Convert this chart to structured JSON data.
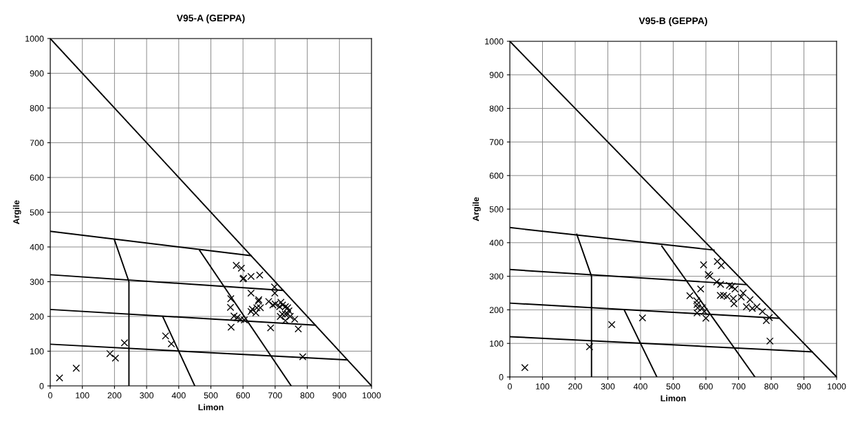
{
  "chart_data": [
    {
      "type": "scatter",
      "title": "V95-A (GEPPA)",
      "xlabel": "Limon",
      "ylabel": "Argile",
      "xlim": [
        0,
        1000
      ],
      "ylim": [
        0,
        1000
      ],
      "xticks": [
        0,
        100,
        200,
        300,
        400,
        500,
        600,
        700,
        800,
        900,
        1000
      ],
      "yticks": [
        0,
        100,
        200,
        300,
        400,
        500,
        600,
        700,
        800,
        900,
        1000
      ],
      "grid": true,
      "legend": false,
      "marker": "cross",
      "series": [
        {
          "color": "#000000",
          "x": [
            579,
            595,
            600,
            602,
            625,
            652,
            698,
            699,
            625,
            649,
            648,
            562,
            561,
            572,
            582,
            593,
            604,
            563,
            629,
            640,
            643,
            654,
            625,
            680,
            693,
            700,
            718,
            723,
            732,
            739,
            714,
            722,
            732,
            739,
            743,
            716,
            732,
            747,
            761,
            686,
            772,
            786,
            29,
            81,
            186,
            203,
            231,
            359,
            377
          ],
          "values": [
            347,
            339,
            308,
            310,
            315,
            319,
            285,
            267,
            267,
            248,
            244,
            251,
            226,
            201,
            197,
            192,
            190,
            169,
            221,
            210,
            225,
            225,
            214,
            243,
            233,
            236,
            241,
            233,
            228,
            225,
            228,
            207,
            207,
            207,
            216,
            200,
            188,
            200,
            192,
            167,
            164,
            84,
            23,
            51,
            93,
            80,
            124,
            144,
            121
          ]
        },
        {
          "type": "line",
          "color": "#000000",
          "marker": "none",
          "x": [
            0,
            1000
          ],
          "values": [
            1000,
            0
          ]
        },
        {
          "type": "line",
          "color": "#000000",
          "marker": "none",
          "x": [
            0,
            625
          ],
          "values": [
            445,
            375
          ]
        },
        {
          "type": "line",
          "color": "#000000",
          "marker": "none",
          "x": [
            0,
            725
          ],
          "values": [
            320,
            275
          ]
        },
        {
          "type": "line",
          "color": "#000000",
          "marker": "none",
          "x": [
            0,
            825
          ],
          "values": [
            220,
            175
          ]
        },
        {
          "type": "line",
          "color": "#000000",
          "marker": "none",
          "x": [
            0,
            925
          ],
          "values": [
            120,
            75
          ]
        },
        {
          "type": "line",
          "color": "#000000",
          "marker": "none",
          "x": [
            200,
            245,
            245
          ],
          "values": [
            420,
            300,
            0
          ]
        },
        {
          "type": "line",
          "color": "#000000",
          "marker": "none",
          "x": [
            350,
            450
          ],
          "values": [
            200,
            0
          ]
        },
        {
          "type": "line",
          "color": "#000000",
          "marker": "none",
          "x": [
            465,
            750
          ],
          "values": [
            390,
            0
          ]
        }
      ]
    },
    {
      "type": "scatter",
      "title": "V95-B (GEPPA)",
      "xlabel": "Limon",
      "ylabel": "Argile",
      "xlim": [
        0,
        1000
      ],
      "ylim": [
        0,
        1000
      ],
      "xticks": [
        0,
        100,
        200,
        300,
        400,
        500,
        600,
        700,
        800,
        900,
        1000
      ],
      "yticks": [
        0,
        100,
        200,
        300,
        400,
        500,
        600,
        700,
        800,
        900,
        1000
      ],
      "grid": true,
      "legend": false,
      "marker": "cross",
      "series": [
        {
          "color": "#000000",
          "x": [
            593,
            635,
            647,
            607,
            612,
            633,
            645,
            672,
            680,
            689,
            584,
            551,
            644,
            654,
            665,
            684,
            686,
            708,
            714,
            735,
            724,
            742,
            756,
            773,
            785,
            794,
            796,
            572,
            573,
            575,
            589,
            573,
            600,
            595,
            46,
            244,
            312,
            406
          ],
          "values": [
            334,
            344,
            332,
            305,
            301,
            283,
            276,
            273,
            270,
            262,
            262,
            242,
            243,
            243,
            240,
            234,
            218,
            238,
            250,
            230,
            209,
            204,
            209,
            195,
            168,
            177,
            107,
            227,
            216,
            206,
            206,
            191,
            175,
            195,
            28,
            90,
            156,
            176
          ]
        },
        {
          "type": "line",
          "color": "#000000",
          "marker": "none",
          "x": [
            0,
            1000
          ],
          "values": [
            1000,
            0
          ]
        },
        {
          "type": "line",
          "color": "#000000",
          "marker": "none",
          "x": [
            0,
            625
          ],
          "values": [
            445,
            378
          ]
        },
        {
          "type": "line",
          "color": "#000000",
          "marker": "none",
          "x": [
            0,
            725
          ],
          "values": [
            320,
            275
          ]
        },
        {
          "type": "line",
          "color": "#000000",
          "marker": "none",
          "x": [
            0,
            825
          ],
          "values": [
            220,
            175
          ]
        },
        {
          "type": "line",
          "color": "#000000",
          "marker": "none",
          "x": [
            0,
            925
          ],
          "values": [
            120,
            75
          ]
        },
        {
          "type": "line",
          "color": "#000000",
          "marker": "none",
          "x": [
            205,
            250,
            250
          ],
          "values": [
            425,
            300,
            0
          ]
        },
        {
          "type": "line",
          "color": "#000000",
          "marker": "none",
          "x": [
            350,
            450
          ],
          "values": [
            200,
            0
          ]
        },
        {
          "type": "line",
          "color": "#000000",
          "marker": "none",
          "x": [
            465,
            750
          ],
          "values": [
            390,
            0
          ]
        }
      ]
    }
  ]
}
